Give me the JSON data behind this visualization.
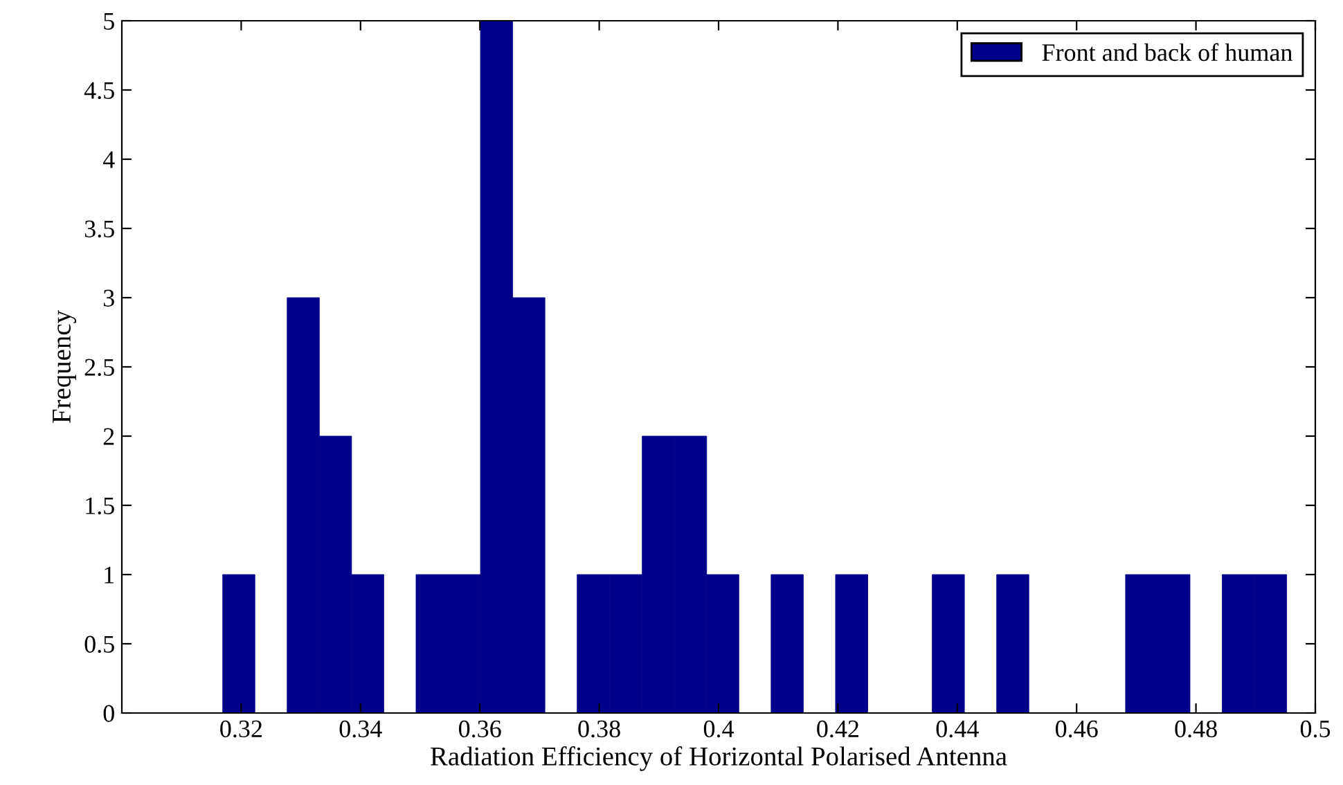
{
  "chart_data": {
    "type": "histogram",
    "xlabel": "Radiation Efficiency of Horizontal Polarised Antenna",
    "ylabel": "Frequency",
    "bins": [
      0.3169,
      0.3223,
      0.3277,
      0.3331,
      0.3385,
      0.3439,
      0.3493,
      0.3547,
      0.3601,
      0.3655,
      0.3709,
      0.3763,
      0.3817,
      0.3872,
      0.3926,
      0.398,
      0.4034,
      0.4088,
      0.4142,
      0.4196,
      0.425,
      0.4304,
      0.4358,
      0.4412,
      0.4466,
      0.452,
      0.4574,
      0.4628,
      0.4682,
      0.4736,
      0.479,
      0.4844,
      0.4898,
      0.4952
    ],
    "series": [
      {
        "name": "Front and back of human",
        "color": "#00008b",
        "values": [
          1,
          0,
          3,
          2,
          1,
          0,
          1,
          1,
          5,
          3,
          0,
          1,
          1,
          2,
          2,
          1,
          0,
          1,
          0,
          1,
          0,
          0,
          1,
          0,
          1,
          0,
          0,
          0,
          1,
          1,
          0,
          1,
          1
        ]
      }
    ],
    "xlim": [
      0.3,
      0.5
    ],
    "xticks": [
      0.32,
      0.34,
      0.36,
      0.38,
      {
        "value": 0.4,
        "label": "0.4"
      },
      0.42,
      0.44,
      0.46,
      0.48,
      {
        "value": 0.5,
        "label": "0.5"
      }
    ],
    "ylim": [
      0,
      5
    ],
    "yticks": [
      0,
      0.5,
      1,
      1.5,
      2,
      2.5,
      3,
      3.5,
      4,
      4.5,
      5
    ],
    "grid": false,
    "legend": "top right"
  }
}
